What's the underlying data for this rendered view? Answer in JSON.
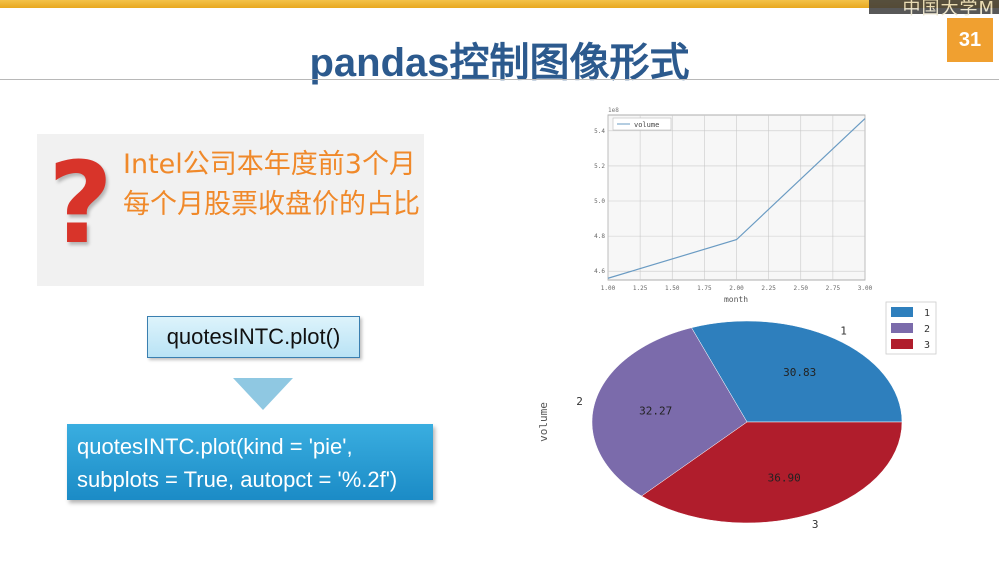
{
  "slide": {
    "page_number": "31",
    "title": "pandas控制图像形式",
    "corner_text": "中国大学M",
    "question": "Intel公司本年度前3个月每个月股票收盘价的占比",
    "code_simple": "quotesINTC.plot()",
    "code_pie_line1": "quotesINTC.plot(kind = 'pie',",
    "code_pie_line2": "subplots = True, autopct = '%.2f')"
  },
  "chart_data": [
    {
      "type": "line",
      "offset_label": "1e8",
      "x": [
        1.0,
        2.0,
        3.0
      ],
      "series": [
        {
          "name": "volume",
          "values": [
            4.56,
            4.78,
            5.47
          ],
          "color": "#6a9bc3"
        }
      ],
      "xlabel": "month",
      "ylabel": "",
      "xticks": [
        "1.00",
        "1.25",
        "1.50",
        "1.75",
        "2.00",
        "2.25",
        "2.50",
        "2.75",
        "3.00"
      ],
      "yticks": [
        "4.6",
        "4.8",
        "5.0",
        "5.2",
        "5.4"
      ],
      "xlim": [
        1.0,
        3.0
      ],
      "ylim": [
        4.55,
        5.49
      ],
      "grid": true,
      "legend": "top-left"
    },
    {
      "type": "pie",
      "categories": [
        "1",
        "2",
        "3"
      ],
      "values": [
        30.83,
        32.27,
        36.9
      ],
      "labels": [
        "30.83",
        "32.27",
        "36.90"
      ],
      "colors": [
        "#2e7fbd",
        "#7b6bab",
        "#b01d2c"
      ],
      "ylabel": "volume",
      "legend": "top-right"
    }
  ]
}
